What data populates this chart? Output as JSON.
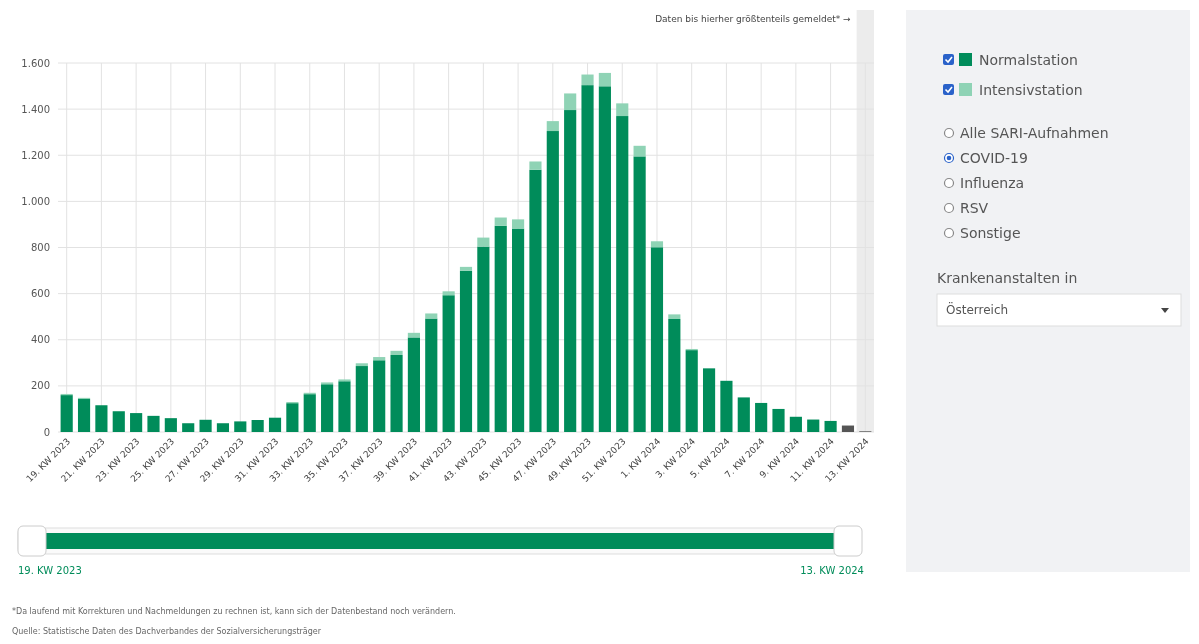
{
  "chart_data": {
    "type": "bar",
    "stacked": true,
    "grid": true,
    "legend": "top right",
    "categories": [
      "19. KW 2023",
      null,
      "21. KW 2023",
      null,
      "23. KW 2023",
      null,
      "25. KW 2023",
      null,
      "27. KW 2023",
      null,
      "29. KW 2023",
      null,
      "31. KW 2023",
      null,
      "33. KW 2023",
      null,
      "35. KW 2023",
      null,
      "37. KW 2023",
      null,
      "39. KW 2023",
      null,
      "41. KW 2023",
      null,
      "43. KW 2023",
      null,
      "45. KW 2023",
      null,
      "47. KW 2023",
      null,
      "49. KW 2023",
      null,
      "51. KW 2023",
      null,
      "1. KW 2024",
      null,
      "3. KW 2024",
      null,
      "5. KW 2024",
      null,
      "7. KW 2024",
      null,
      "9. KW 2024",
      null,
      "11. KW 2024",
      null,
      "13. KW 2024"
    ],
    "series": [
      {
        "name": "Normalstation",
        "color": "#008c5a",
        "colors": [
          "#008c5a",
          "#008c5a",
          "#008c5a",
          "#008c5a",
          "#008c5a",
          "#008c5a",
          "#008c5a",
          "#008c5a",
          "#008c5a",
          "#008c5a",
          "#008c5a",
          "#008c5a",
          "#008c5a",
          "#008c5a",
          "#008c5a",
          "#008c5a",
          "#008c5a",
          "#008c5a",
          "#008c5a",
          "#008c5a",
          "#008c5a",
          "#008c5a",
          "#008c5a",
          "#008c5a",
          "#008c5a",
          "#008c5a",
          "#008c5a",
          "#008c5a",
          "#008c5a",
          "#008c5a",
          "#008c5a",
          "#008c5a",
          "#008c5a",
          "#008c5a",
          "#008c5a",
          "#008c5a",
          "#008c5a",
          "#008c5a",
          "#008c5a",
          "#008c5a",
          "#008c5a",
          "#008c5a",
          "#008c5a",
          "#008c5a",
          "#008c5a",
          "#555555",
          "#555555"
        ],
        "values": [
          160,
          143,
          116,
          90,
          82,
          70,
          60,
          38,
          53,
          38,
          46,
          52,
          62,
          125,
          164,
          207,
          220,
          286,
          311,
          334,
          410,
          492,
          593,
          699,
          804,
          894,
          882,
          1137,
          1305,
          1396,
          1504,
          1499,
          1370,
          1195,
          801,
          490,
          355,
          276,
          222,
          150,
          126,
          100,
          66,
          54,
          48,
          28,
          3
        ]
      },
      {
        "name": "Intensivstation",
        "color": "#8fd3b5",
        "values": [
          5,
          5,
          null,
          null,
          null,
          null,
          null,
          null,
          null,
          null,
          null,
          null,
          null,
          5,
          6,
          8,
          8,
          12,
          14,
          18,
          20,
          22,
          17,
          17,
          39,
          36,
          40,
          36,
          43,
          72,
          46,
          58,
          55,
          46,
          26,
          20,
          5,
          null,
          null,
          null,
          null,
          null,
          null,
          null,
          null,
          null,
          null
        ]
      }
    ],
    "ylim": [
      0,
      1600
    ],
    "yticks": [
      0,
      200,
      400,
      600,
      800,
      {
        "value": 1000,
        "label": "1.000"
      },
      {
        "value": 1200,
        "label": "1.200"
      },
      {
        "value": 1400,
        "label": "1.400"
      },
      {
        "value": 1600,
        "label": "1.600"
      }
    ],
    "bands": [
      {
        "axis": "x",
        "from": "13. KW 2024",
        "to": "13. KW 2024",
        "label": "Daten bis hierher größtenteils gemeldet* →",
        "color": "#ececec"
      }
    ],
    "annotations": [
      "*Da laufend mit Korrekturen und Nachmeldungen zu rechnen ist, kann sich der Datenbestand noch verändern.",
      "Quelle: Statistische Daten des Dachverbandes der Sozialversicherungsträger",
      "Alle SARI-Aufnahmen",
      "COVID-19",
      "Influenza",
      "RSV",
      "Sonstige",
      "Krankenanstalten in",
      "Österreich"
    ]
  }
}
